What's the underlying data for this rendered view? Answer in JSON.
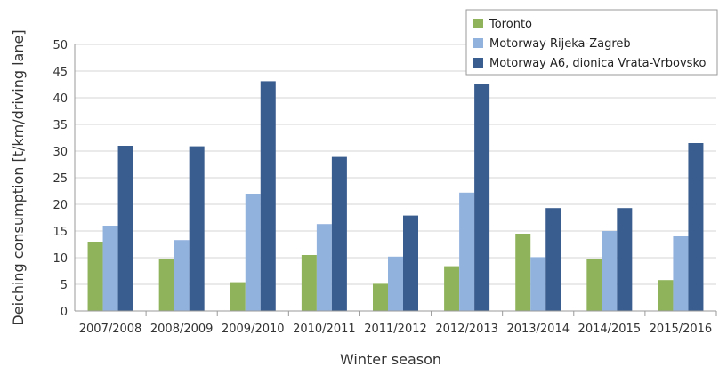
{
  "chart_data": {
    "type": "bar",
    "xlabel": "Winter season",
    "ylabel": "Deiching consumption [t/km/driving lane]",
    "ylim": [
      0,
      50
    ],
    "yticks": [
      0,
      5,
      10,
      15,
      20,
      25,
      30,
      35,
      40,
      45,
      50
    ],
    "grid": "horizontal",
    "legend_position": "top-right",
    "categories": [
      "2007/2008",
      "2008/2009",
      "2009/2010",
      "2010/2011",
      "2011/2012",
      "2012/2013",
      "2013/2014",
      "2014/2015",
      "2015/2016"
    ],
    "series": [
      {
        "name": "Toronto",
        "color": "#8fb35a",
        "values": [
          13.0,
          9.8,
          5.4,
          10.5,
          5.1,
          8.4,
          14.5,
          9.7,
          5.8
        ]
      },
      {
        "name": "Motorway Rijeka-Zagreb",
        "color": "#92b2de",
        "values": [
          16.0,
          13.3,
          22.0,
          16.3,
          10.2,
          22.2,
          10.1,
          15.0,
          14.0
        ]
      },
      {
        "name": "Motorway A6, dionica Vrata-Vrbovsko",
        "color": "#3a5d8f",
        "values": [
          31.0,
          30.9,
          43.1,
          28.9,
          17.9,
          42.5,
          19.3,
          19.3,
          31.5
        ]
      }
    ]
  }
}
